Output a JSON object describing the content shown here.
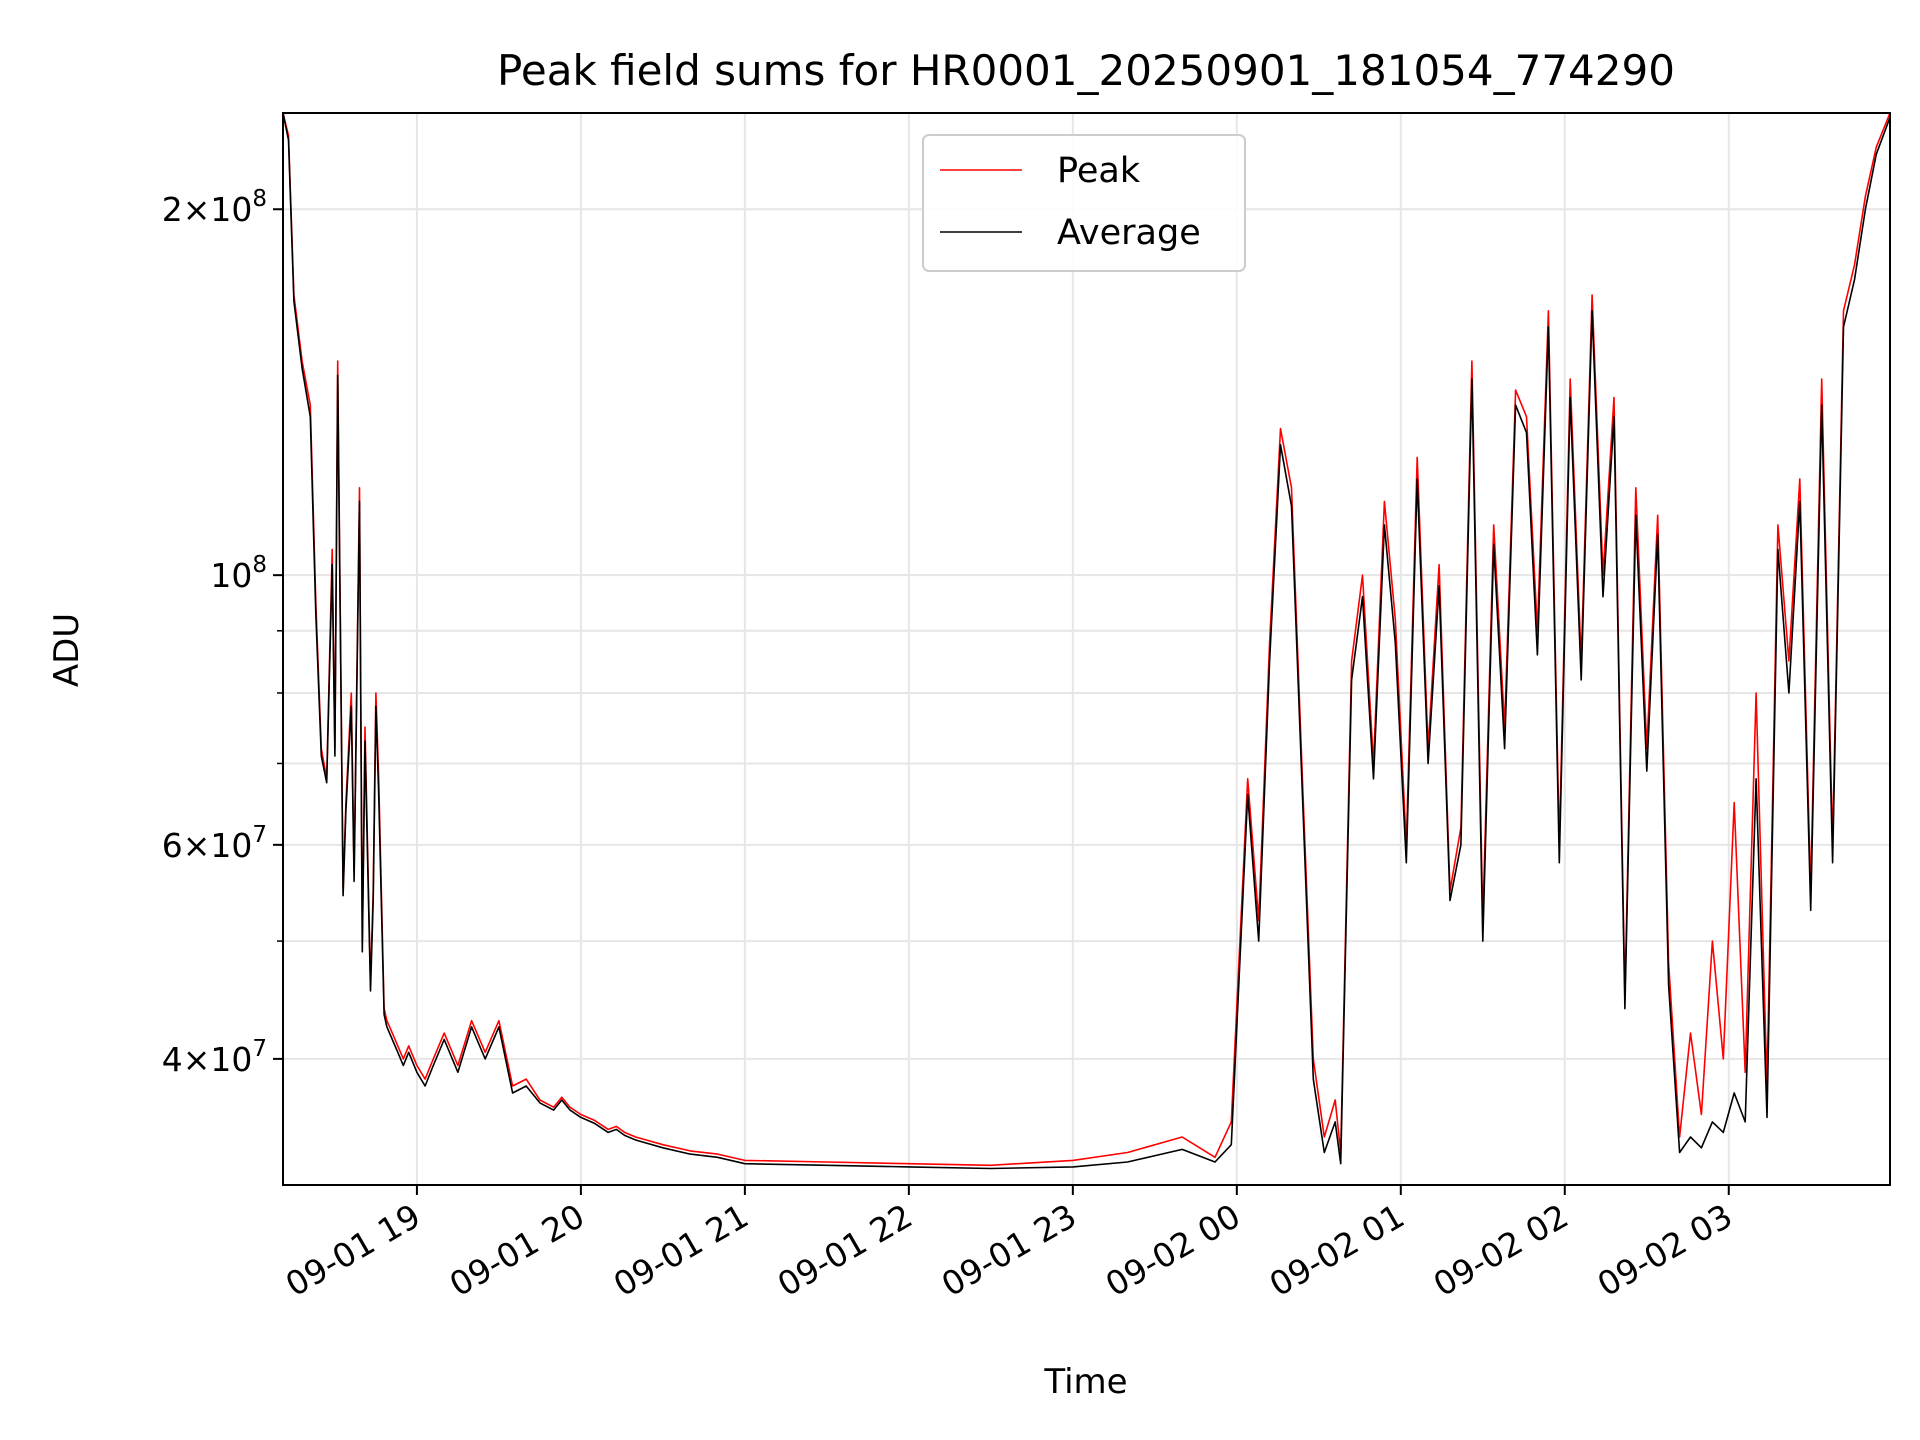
{
  "chart_data": {
    "type": "line",
    "title": "Peak field sums for HR0001_20250901_181054_774290",
    "xlabel": "Time",
    "ylabel": "ADU",
    "y_scale": "log",
    "ylim": [
      31500000,
      240000000
    ],
    "xlim": [
      "09-01 18:11",
      "09-02 03:59"
    ],
    "grid": true,
    "legend": "top-center",
    "x_ticks": [
      "09-01 19",
      "09-01 20",
      "09-01 21",
      "09-01 22",
      "09-01 23",
      "09-02 00",
      "09-02 01",
      "09-02 02",
      "09-02 03"
    ],
    "y_ticks_major": [
      {
        "value": 40000000,
        "mantissa": "4",
        "exponent": "7"
      },
      {
        "value": 60000000,
        "mantissa": "6",
        "exponent": "7"
      },
      {
        "value": 100000000,
        "mantissa": "",
        "exponent": "8"
      },
      {
        "value": 200000000,
        "mantissa": "2",
        "exponent": "8"
      }
    ],
    "y_ticks_minor": [
      50000000,
      70000000,
      80000000,
      90000000
    ],
    "series": [
      {
        "name": "Peak",
        "color": "#ff0000",
        "x": [
          "09-01 18:11",
          "09-01 18:13",
          "09-01 18:15",
          "09-01 18:18",
          "09-01 18:21",
          "09-01 18:23",
          "09-01 18:25",
          "09-01 18:27",
          "09-01 18:29",
          "09-01 18:30",
          "09-01 18:31",
          "09-01 18:33",
          "09-01 18:34",
          "09-01 18:36",
          "09-01 18:37",
          "09-01 18:39",
          "09-01 18:40",
          "09-01 18:41",
          "09-01 18:43",
          "09-01 18:44",
          "09-01 18:45",
          "09-01 18:46",
          "09-01 18:48",
          "09-01 18:49",
          "09-01 18:51",
          "09-01 18:53",
          "09-01 18:55",
          "09-01 18:57",
          "09-01 19:00",
          "09-01 19:03",
          "09-01 19:06",
          "09-01 19:10",
          "09-01 19:15",
          "09-01 19:20",
          "09-01 19:25",
          "09-01 19:30",
          "09-01 19:35",
          "09-01 19:40",
          "09-01 19:45",
          "09-01 19:50",
          "09-01 19:53",
          "09-01 19:56",
          "09-01 20:00",
          "09-01 20:05",
          "09-01 20:10",
          "09-01 20:13",
          "09-01 20:16",
          "09-01 20:20",
          "09-01 20:30",
          "09-01 20:40",
          "09-01 20:50",
          "09-01 21:00",
          "09-01 21:30",
          "09-01 22:00",
          "09-01 22:30",
          "09-01 23:00",
          "09-01 23:20",
          "09-01 23:40",
          "09-01 23:52",
          "09-01 23:58",
          "09-02 00:04",
          "09-02 00:08",
          "09-02 00:12",
          "09-02 00:16",
          "09-02 00:20",
          "09-02 00:24",
          "09-02 00:28",
          "09-02 00:32",
          "09-02 00:36",
          "09-02 00:38",
          "09-02 00:42",
          "09-02 00:46",
          "09-02 00:50",
          "09-02 00:54",
          "09-02 00:58",
          "09-02 01:02",
          "09-02 01:06",
          "09-02 01:10",
          "09-02 01:14",
          "09-02 01:18",
          "09-02 01:22",
          "09-02 01:26",
          "09-02 01:30",
          "09-02 01:34",
          "09-02 01:38",
          "09-02 01:42",
          "09-02 01:46",
          "09-02 01:50",
          "09-02 01:54",
          "09-02 01:58",
          "09-02 02:02",
          "09-02 02:06",
          "09-02 02:10",
          "09-02 02:14",
          "09-02 02:18",
          "09-02 02:22",
          "09-02 02:26",
          "09-02 02:30",
          "09-02 02:34",
          "09-02 02:38",
          "09-02 02:42",
          "09-02 02:46",
          "09-02 02:50",
          "09-02 02:54",
          "09-02 02:58",
          "09-02 03:02",
          "09-02 03:06",
          "09-02 03:10",
          "09-02 03:14",
          "09-02 03:18",
          "09-02 03:22",
          "09-02 03:26",
          "09-02 03:30",
          "09-02 03:34",
          "09-02 03:38",
          "09-02 03:42",
          "09-02 03:46",
          "09-02 03:50",
          "09-02 03:54",
          "09-02 03:59"
        ],
        "values": [
          240000000,
          230000000,
          170000000,
          150000000,
          138000000,
          95000000,
          72000000,
          68000000,
          105000000,
          72000000,
          150000000,
          55000000,
          65000000,
          80000000,
          57000000,
          118000000,
          50000000,
          75000000,
          46000000,
          55000000,
          80000000,
          68000000,
          44000000,
          43000000,
          42000000,
          41000000,
          40000000,
          41000000,
          39500000,
          38500000,
          40000000,
          42000000,
          39500000,
          43000000,
          40500000,
          43000000,
          38000000,
          38500000,
          37000000,
          36500000,
          37200000,
          36500000,
          36000000,
          35600000,
          35000000,
          35200000,
          34800000,
          34500000,
          34000000,
          33600000,
          33400000,
          33000000,
          32900000,
          32800000,
          32700000,
          33000000,
          33500000,
          34500000,
          33200000,
          35500000,
          68000000,
          52000000,
          88000000,
          132000000,
          118000000,
          68000000,
          40000000,
          34500000,
          37000000,
          33500000,
          85000000,
          100000000,
          70000000,
          115000000,
          92000000,
          60000000,
          125000000,
          72000000,
          102000000,
          55000000,
          62000000,
          150000000,
          52000000,
          110000000,
          75000000,
          142000000,
          135000000,
          90000000,
          165000000,
          60000000,
          145000000,
          85000000,
          170000000,
          100000000,
          140000000,
          45000000,
          118000000,
          72000000,
          112000000,
          48000000,
          34500000,
          42000000,
          36000000,
          50000000,
          40000000,
          65000000,
          39000000,
          80000000,
          38000000,
          110000000,
          85000000,
          120000000,
          55000000,
          145000000,
          60000000,
          165000000,
          180000000,
          205000000,
          225000000,
          240000000
        ]
      },
      {
        "name": "Average",
        "color": "#000000",
        "x": [
          "09-01 18:11",
          "09-01 18:13",
          "09-01 18:15",
          "09-01 18:18",
          "09-01 18:21",
          "09-01 18:23",
          "09-01 18:25",
          "09-01 18:27",
          "09-01 18:29",
          "09-01 18:30",
          "09-01 18:31",
          "09-01 18:33",
          "09-01 18:34",
          "09-01 18:36",
          "09-01 18:37",
          "09-01 18:39",
          "09-01 18:40",
          "09-01 18:41",
          "09-01 18:43",
          "09-01 18:44",
          "09-01 18:45",
          "09-01 18:46",
          "09-01 18:48",
          "09-01 18:49",
          "09-01 18:51",
          "09-01 18:53",
          "09-01 18:55",
          "09-01 18:57",
          "09-01 19:00",
          "09-01 19:03",
          "09-01 19:06",
          "09-01 19:10",
          "09-01 19:15",
          "09-01 19:20",
          "09-01 19:25",
          "09-01 19:30",
          "09-01 19:35",
          "09-01 19:40",
          "09-01 19:45",
          "09-01 19:50",
          "09-01 19:53",
          "09-01 19:56",
          "09-01 20:00",
          "09-01 20:05",
          "09-01 20:10",
          "09-01 20:13",
          "09-01 20:16",
          "09-01 20:20",
          "09-01 20:30",
          "09-01 20:40",
          "09-01 20:50",
          "09-01 21:00",
          "09-01 21:30",
          "09-01 22:00",
          "09-01 22:30",
          "09-01 23:00",
          "09-01 23:20",
          "09-01 23:40",
          "09-01 23:52",
          "09-01 23:58",
          "09-02 00:04",
          "09-02 00:08",
          "09-02 00:12",
          "09-02 00:16",
          "09-02 00:20",
          "09-02 00:24",
          "09-02 00:28",
          "09-02 00:32",
          "09-02 00:36",
          "09-02 00:38",
          "09-02 00:42",
          "09-02 00:46",
          "09-02 00:50",
          "09-02 00:54",
          "09-02 00:58",
          "09-02 01:02",
          "09-02 01:06",
          "09-02 01:10",
          "09-02 01:14",
          "09-02 01:18",
          "09-02 01:22",
          "09-02 01:26",
          "09-02 01:30",
          "09-02 01:34",
          "09-02 01:38",
          "09-02 01:42",
          "09-02 01:46",
          "09-02 01:50",
          "09-02 01:54",
          "09-02 01:58",
          "09-02 02:02",
          "09-02 02:06",
          "09-02 02:10",
          "09-02 02:14",
          "09-02 02:18",
          "09-02 02:22",
          "09-02 02:26",
          "09-02 02:30",
          "09-02 02:34",
          "09-02 02:38",
          "09-02 02:42",
          "09-02 02:46",
          "09-02 02:50",
          "09-02 02:54",
          "09-02 02:58",
          "09-02 03:02",
          "09-02 03:06",
          "09-02 03:10",
          "09-02 03:14",
          "09-02 03:18",
          "09-02 03:22",
          "09-02 03:26",
          "09-02 03:30",
          "09-02 03:34",
          "09-02 03:38",
          "09-02 03:42",
          "09-02 03:46",
          "09-02 03:50",
          "09-02 03:54",
          "09-02 03:59"
        ],
        "values": [
          240000000,
          228000000,
          168000000,
          148000000,
          135000000,
          93000000,
          71000000,
          67500000,
          102000000,
          71000000,
          146000000,
          54500000,
          64000000,
          78000000,
          56000000,
          115000000,
          49000000,
          73000000,
          45500000,
          54000000,
          78000000,
          66000000,
          43500000,
          42500000,
          41500000,
          40500000,
          39500000,
          40500000,
          39000000,
          38000000,
          39500000,
          41500000,
          39000000,
          42500000,
          40000000,
          42500000,
          37500000,
          38000000,
          36800000,
          36300000,
          37000000,
          36300000,
          35800000,
          35400000,
          34800000,
          35000000,
          34600000,
          34300000,
          33800000,
          33400000,
          33200000,
          32800000,
          32700000,
          32600000,
          32500000,
          32600000,
          32900000,
          33700000,
          32900000,
          34000000,
          66000000,
          50000000,
          85000000,
          128000000,
          114000000,
          66000000,
          38500000,
          33500000,
          35500000,
          32800000,
          82000000,
          96000000,
          68000000,
          110000000,
          88000000,
          58000000,
          120000000,
          70000000,
          98000000,
          54000000,
          60000000,
          145000000,
          50000000,
          106000000,
          72000000,
          138000000,
          131000000,
          86000000,
          160000000,
          58000000,
          140000000,
          82000000,
          165000000,
          96000000,
          135000000,
          44000000,
          112000000,
          69000000,
          108000000,
          46000000,
          33500000,
          34500000,
          33800000,
          35500000,
          34800000,
          37500000,
          35500000,
          68000000,
          35800000,
          105000000,
          80000000,
          115000000,
          53000000,
          138000000,
          58000000,
          160000000,
          175000000,
          200000000,
          222000000,
          238000000
        ]
      }
    ]
  }
}
